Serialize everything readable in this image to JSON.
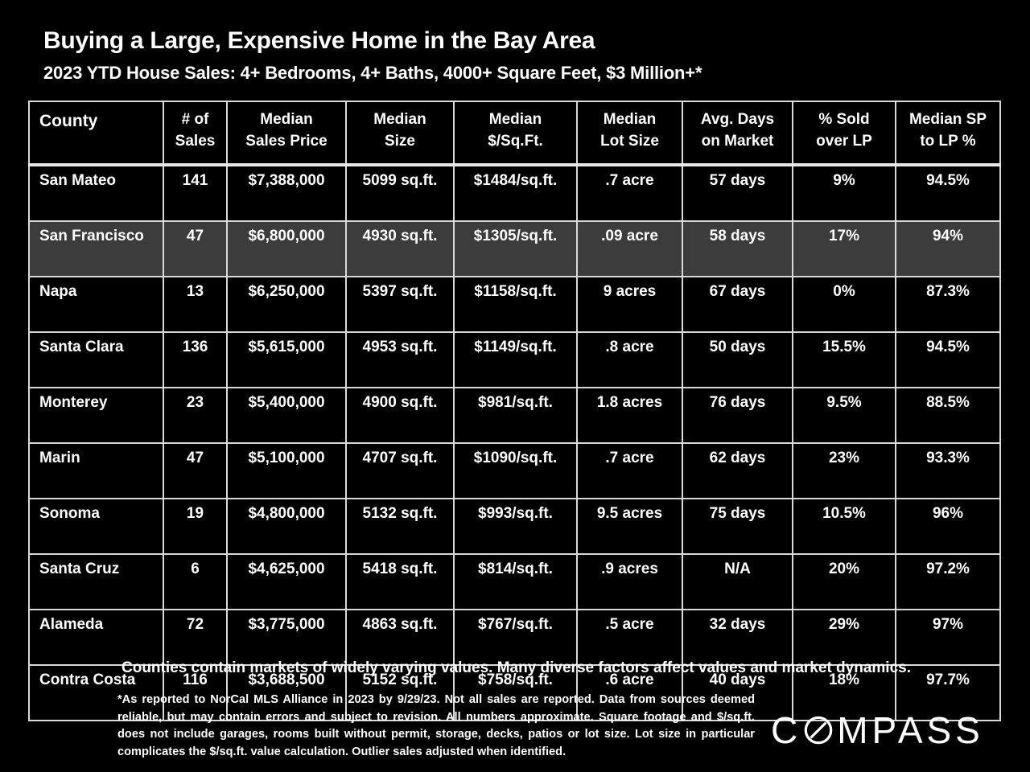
{
  "header": {
    "title": "Buying a Large, Expensive Home in the Bay Area",
    "subtitle": "2023 YTD House Sales:  4+ Bedrooms, 4+ Baths, 4000+ Square Feet, $3 Million+*"
  },
  "table": {
    "columns": [
      {
        "line1": "County",
        "line2": ""
      },
      {
        "line1": "# of",
        "line2": "Sales"
      },
      {
        "line1": "Median",
        "line2": "Sales Price"
      },
      {
        "line1": "Median",
        "line2": "Size"
      },
      {
        "line1": "Median",
        "line2": "$/Sq.Ft."
      },
      {
        "line1": "Median",
        "line2": "Lot Size"
      },
      {
        "line1": "Avg. Days",
        "line2": "on Market"
      },
      {
        "line1": "% Sold",
        "line2": "over LP"
      },
      {
        "line1": "Median SP",
        "line2": "to LP %"
      }
    ],
    "highlight_color": "#3c3c3c",
    "rows": [
      [
        "San Mateo",
        "141",
        "$7,388,000",
        "5099 sq.ft.",
        "$1484/sq.ft.",
        ".7 acre",
        "57 days",
        "9%",
        "94.5%"
      ],
      [
        "San Francisco",
        "47",
        "$6,800,000",
        "4930 sq.ft.",
        "$1305/sq.ft.",
        ".09 acre",
        "58 days",
        "17%",
        "94%"
      ],
      [
        "Napa",
        "13",
        "$6,250,000",
        "5397 sq.ft.",
        "$1158/sq.ft.",
        "9 acres",
        "67 days",
        "0%",
        "87.3%"
      ],
      [
        "Santa Clara",
        "136",
        "$5,615,000",
        "4953 sq.ft.",
        "$1149/sq.ft.",
        ".8 acre",
        "50 days",
        "15.5%",
        "94.5%"
      ],
      [
        "Monterey",
        "23",
        "$5,400,000",
        "4900 sq.ft.",
        "$981/sq.ft.",
        "1.8 acres",
        "76 days",
        "9.5%",
        "88.5%"
      ],
      [
        "Marin",
        "47",
        "$5,100,000",
        "4707 sq.ft.",
        "$1090/sq.ft.",
        ".7 acre",
        "62 days",
        "23%",
        "93.3%"
      ],
      [
        "Sonoma",
        "19",
        "$4,800,000",
        "5132 sq.ft.",
        "$993/sq.ft.",
        "9.5 acres",
        "75 days",
        "10.5%",
        "96%"
      ],
      [
        "Santa Cruz",
        "6",
        "$4,625,000",
        "5418 sq.ft.",
        "$814/sq.ft.",
        ".9 acres",
        "N/A",
        "20%",
        "97.2%"
      ],
      [
        "Alameda",
        "72",
        "$3,775,000",
        "4863 sq.ft.",
        "$767/sq.ft.",
        ".5 acre",
        "32 days",
        "29%",
        "97%"
      ],
      [
        "Contra Costa",
        "116",
        "$3,688,500",
        "5152 sq.ft.",
        "$758/sq.ft.",
        ".6 acre",
        "40 days",
        "18%",
        "97.7%"
      ]
    ]
  },
  "note": "Counties contain markets of widely varying values. Many diverse factors affect values and market dynamics.",
  "footnote": "*As reported to NorCal MLS Alliance in 2023 by 9/29/23. Not all sales are reported. Data from sources deemed reliable, but may contain errors and subject to revision. All numbers approximate. Square footage and $/sq.ft. does not include garages, rooms built without permit, storage, decks, patios or lot size. Lot size in particular complicates the $/sq.ft. value calculation. Outlier sales adjusted when identified.",
  "logo": {
    "text": "COMPASS",
    "icon": "compass-o-icon"
  }
}
